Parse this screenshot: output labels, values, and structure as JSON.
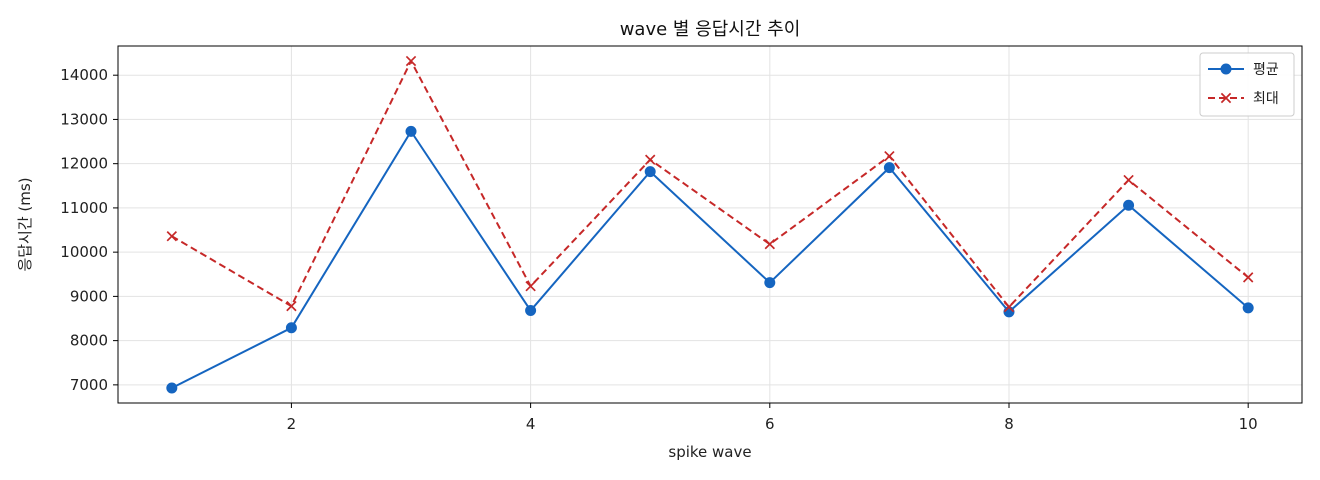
{
  "chart_data": {
    "type": "line",
    "title": "wave 별 응답시간 추이",
    "xlabel": "spike wave",
    "ylabel": "응답시간 (ms)",
    "x": [
      1,
      2,
      3,
      4,
      5,
      6,
      7,
      8,
      9,
      10
    ],
    "xlim": [
      0.55,
      10.45
    ],
    "ylim": [
      6590,
      14660
    ],
    "xticks": [
      2,
      4,
      6,
      8,
      10
    ],
    "yticks": [
      7000,
      8000,
      9000,
      10000,
      11000,
      12000,
      13000,
      14000
    ],
    "grid": true,
    "legend_position": "top-right",
    "series": [
      {
        "name": "평균",
        "color": "#1565c0",
        "line_style": "solid",
        "marker": "circle",
        "values": [
          6930,
          8290,
          12730,
          8680,
          11820,
          9310,
          11910,
          8650,
          11060,
          8740
        ]
      },
      {
        "name": "최대",
        "color": "#c62828",
        "line_style": "dashed",
        "marker": "x",
        "values": [
          10360,
          8780,
          14320,
          9230,
          12090,
          10180,
          12170,
          8760,
          11630,
          9430
        ]
      }
    ]
  }
}
